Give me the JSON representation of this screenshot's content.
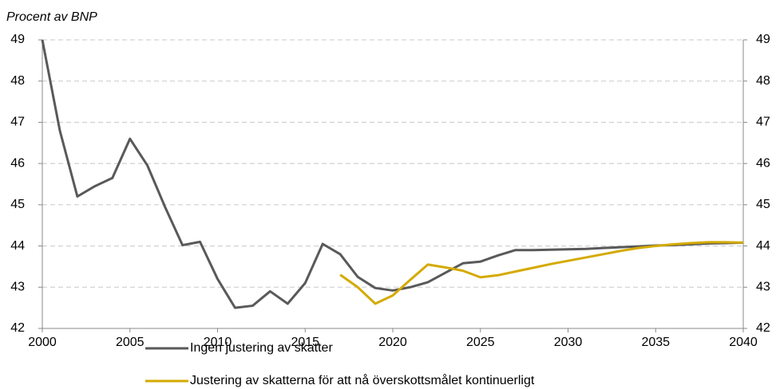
{
  "chart_data": {
    "type": "line",
    "title": "Procent av BNP",
    "x": [
      2000,
      2001,
      2002,
      2003,
      2004,
      2005,
      2006,
      2007,
      2008,
      2009,
      2010,
      2011,
      2012,
      2013,
      2014,
      2015,
      2016,
      2017,
      2018,
      2019,
      2020,
      2021,
      2022,
      2023,
      2024,
      2025,
      2026,
      2027,
      2028,
      2029,
      2030,
      2031,
      2032,
      2033,
      2034,
      2035,
      2036,
      2037,
      2038,
      2039,
      2040
    ],
    "series": [
      {
        "name": "Ingen justering av skatter",
        "color": "#595959",
        "values": [
          49.0,
          46.8,
          45.2,
          45.45,
          45.65,
          46.6,
          45.95,
          44.95,
          44.02,
          44.1,
          43.2,
          42.5,
          42.55,
          42.9,
          42.6,
          43.1,
          44.05,
          43.8,
          43.25,
          42.98,
          42.92,
          43.0,
          43.12,
          43.35,
          43.58,
          43.62,
          43.77,
          43.9,
          43.9,
          43.91,
          43.92,
          43.93,
          43.95,
          43.97,
          43.99,
          44.01,
          44.02,
          44.04,
          44.06,
          44.07,
          44.08
        ]
      },
      {
        "name": "Justering av skatterna för att nå överskottsmålet kontinuerligt",
        "color": "#d4aa00",
        "values": [
          null,
          null,
          null,
          null,
          null,
          null,
          null,
          null,
          null,
          null,
          null,
          null,
          null,
          null,
          null,
          null,
          null,
          43.3,
          43.0,
          42.6,
          42.8,
          43.18,
          43.55,
          43.48,
          43.4,
          43.24,
          43.29,
          43.38,
          43.47,
          43.56,
          43.64,
          43.72,
          43.8,
          43.88,
          43.95,
          44.0,
          44.04,
          44.07,
          44.09,
          44.09,
          44.08
        ]
      }
    ],
    "xlim": [
      2000,
      2040
    ],
    "xticks": [
      2000,
      2005,
      2010,
      2015,
      2020,
      2025,
      2030,
      2035,
      2040
    ],
    "ylim": [
      42,
      49
    ],
    "yticks": [
      42,
      43,
      44,
      45,
      46,
      47,
      48,
      49
    ],
    "y2lim": [
      42,
      49
    ],
    "y2ticks": [
      42,
      43,
      44,
      45,
      46,
      47,
      48,
      49
    ],
    "grid": true
  }
}
